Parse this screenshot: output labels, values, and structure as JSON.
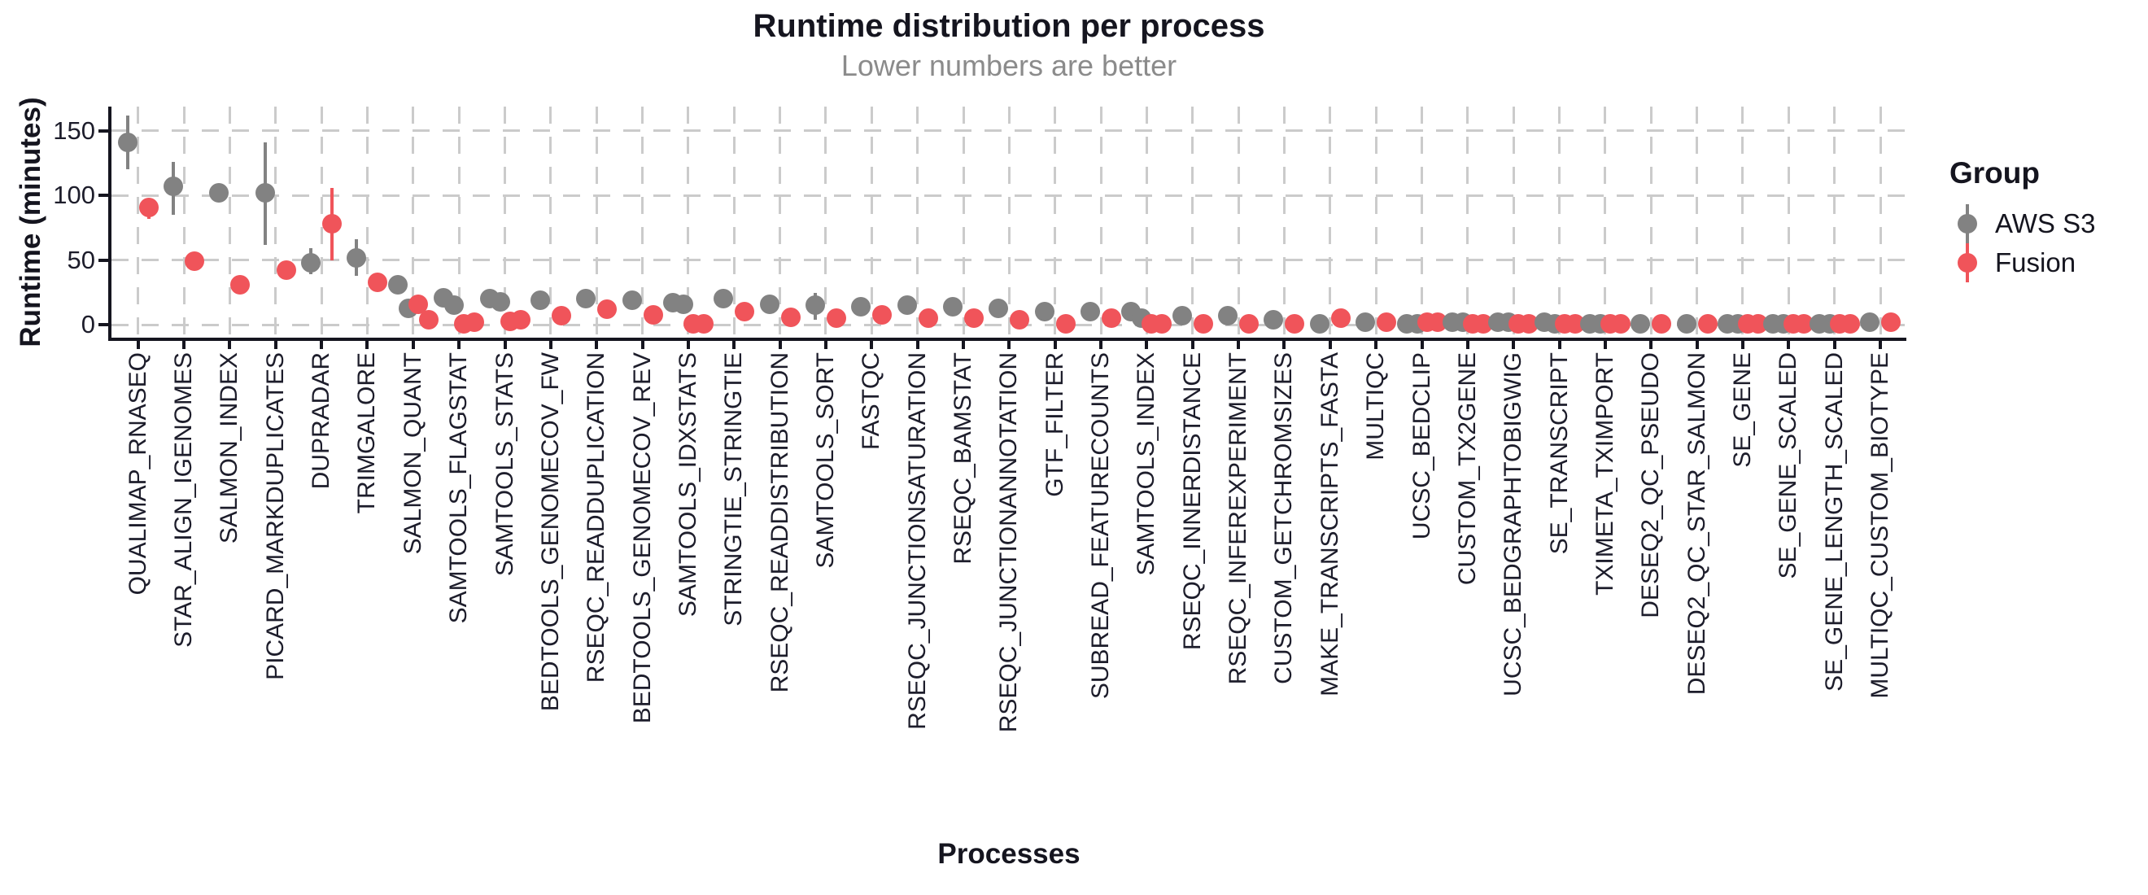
{
  "chart_data": {
    "type": "scatter",
    "title": "Runtime distribution per process",
    "subtitle": "Lower numbers are better",
    "xlabel": "Processes",
    "ylabel": "Runtime (minutes)",
    "ylim": [
      0,
      165
    ],
    "y_ticks": [
      0,
      50,
      100,
      150
    ],
    "grid": "dashed",
    "legend": {
      "title": "Group",
      "position": "right",
      "entries": [
        {
          "label": "AWS S3",
          "color": "#828282"
        },
        {
          "label": "Fusion",
          "color": "#f0545a"
        }
      ]
    },
    "colors": {
      "aws_s3": "#828282",
      "fusion": "#f0545a",
      "grid": "#cbcbcb",
      "axis": "#15151f",
      "subtitle": "#8b8b8b"
    },
    "processes": [
      {
        "name": "QUALIMAP_RNASEQ",
        "aws_s3": {
          "values": [
            141
          ],
          "range": [
            120,
            162
          ]
        },
        "fusion": {
          "values": [
            91
          ],
          "range": [
            82,
            97
          ]
        }
      },
      {
        "name": "STAR_ALIGN_IGENOMES",
        "aws_s3": {
          "values": [
            107
          ],
          "range": [
            85,
            126
          ]
        },
        "fusion": {
          "values": [
            49
          ]
        }
      },
      {
        "name": "SALMON_INDEX",
        "aws_s3": {
          "values": [
            102
          ]
        },
        "fusion": {
          "values": [
            31
          ]
        }
      },
      {
        "name": "PICARD_MARKDUPLICATES",
        "aws_s3": {
          "values": [
            102
          ],
          "range": [
            62,
            141
          ]
        },
        "fusion": {
          "values": [
            42
          ]
        }
      },
      {
        "name": "DUPRADAR",
        "aws_s3": {
          "values": [
            48
          ],
          "range": [
            39,
            59
          ]
        },
        "fusion": {
          "values": [
            78
          ],
          "range": [
            50,
            106
          ]
        }
      },
      {
        "name": "TRIMGALORE",
        "aws_s3": {
          "values": [
            52
          ],
          "range": [
            38,
            66
          ]
        },
        "fusion": {
          "values": [
            33
          ]
        }
      },
      {
        "name": "SALMON_QUANT",
        "aws_s3": {
          "values": [
            31,
            13
          ]
        },
        "fusion": {
          "values": [
            16,
            4
          ]
        }
      },
      {
        "name": "SAMTOOLS_FLAGSTAT",
        "aws_s3": {
          "values": [
            21,
            15
          ]
        },
        "fusion": {
          "values": [
            1,
            2
          ]
        }
      },
      {
        "name": "SAMTOOLS_STATS",
        "aws_s3": {
          "values": [
            20,
            18
          ]
        },
        "fusion": {
          "values": [
            3,
            4
          ]
        }
      },
      {
        "name": "BEDTOOLS_GENOMECOV_FW",
        "aws_s3": {
          "values": [
            19
          ]
        },
        "fusion": {
          "values": [
            7
          ]
        }
      },
      {
        "name": "RSEQC_READDUPLICATION",
        "aws_s3": {
          "values": [
            20
          ]
        },
        "fusion": {
          "values": [
            12
          ]
        }
      },
      {
        "name": "BEDTOOLS_GENOMECOV_REV",
        "aws_s3": {
          "values": [
            19
          ]
        },
        "fusion": {
          "values": [
            8
          ]
        }
      },
      {
        "name": "SAMTOOLS_IDXSTATS",
        "aws_s3": {
          "values": [
            17,
            16
          ]
        },
        "fusion": {
          "values": [
            1,
            1
          ]
        }
      },
      {
        "name": "STRINGTIE_STRINGTIE",
        "aws_s3": {
          "values": [
            20
          ]
        },
        "fusion": {
          "values": [
            10
          ]
        }
      },
      {
        "name": "RSEQC_READDISTRIBUTION",
        "aws_s3": {
          "values": [
            16
          ]
        },
        "fusion": {
          "values": [
            6
          ]
        }
      },
      {
        "name": "SAMTOOLS_SORT",
        "aws_s3": {
          "values": [
            15
          ],
          "range": [
            4,
            25
          ]
        },
        "fusion": {
          "values": [
            5
          ]
        }
      },
      {
        "name": "FASTQC",
        "aws_s3": {
          "values": [
            14
          ]
        },
        "fusion": {
          "values": [
            8
          ]
        }
      },
      {
        "name": "RSEQC_JUNCTIONSATURATION",
        "aws_s3": {
          "values": [
            15
          ]
        },
        "fusion": {
          "values": [
            5
          ]
        }
      },
      {
        "name": "RSEQC_BAMSTAT",
        "aws_s3": {
          "values": [
            14
          ]
        },
        "fusion": {
          "values": [
            5
          ]
        }
      },
      {
        "name": "RSEQC_JUNCTIONANNOTATION",
        "aws_s3": {
          "values": [
            13
          ]
        },
        "fusion": {
          "values": [
            4
          ]
        }
      },
      {
        "name": "GTF_FILTER",
        "aws_s3": {
          "values": [
            10
          ]
        },
        "fusion": {
          "values": [
            1
          ]
        }
      },
      {
        "name": "SUBREAD_FEATURECOUNTS",
        "aws_s3": {
          "values": [
            10
          ]
        },
        "fusion": {
          "values": [
            5
          ]
        }
      },
      {
        "name": "SAMTOOLS_INDEX",
        "aws_s3": {
          "values": [
            10,
            5
          ]
        },
        "fusion": {
          "values": [
            1,
            1
          ]
        }
      },
      {
        "name": "RSEQC_INNERDISTANCE",
        "aws_s3": {
          "values": [
            7
          ]
        },
        "fusion": {
          "values": [
            1
          ]
        }
      },
      {
        "name": "RSEQC_INFEREXPERIMENT",
        "aws_s3": {
          "values": [
            7
          ]
        },
        "fusion": {
          "values": [
            1
          ]
        }
      },
      {
        "name": "CUSTOM_GETCHROMSIZES",
        "aws_s3": {
          "values": [
            4
          ]
        },
        "fusion": {
          "values": [
            1
          ]
        }
      },
      {
        "name": "MAKE_TRANSCRIPTS_FASTA",
        "aws_s3": {
          "values": [
            1
          ]
        },
        "fusion": {
          "values": [
            5
          ]
        }
      },
      {
        "name": "MULTIQC",
        "aws_s3": {
          "values": [
            2
          ]
        },
        "fusion": {
          "values": [
            2
          ]
        }
      },
      {
        "name": "UCSC_BEDCLIP",
        "aws_s3": {
          "values": [
            1,
            1
          ]
        },
        "fusion": {
          "values": [
            2,
            2
          ]
        }
      },
      {
        "name": "CUSTOM_TX2GENE",
        "aws_s3": {
          "values": [
            2,
            2
          ]
        },
        "fusion": {
          "values": [
            1,
            1
          ]
        }
      },
      {
        "name": "UCSC_BEDGRAPHTOBIGWIG",
        "aws_s3": {
          "values": [
            2,
            2
          ]
        },
        "fusion": {
          "values": [
            1,
            1
          ]
        }
      },
      {
        "name": "SE_TRANSCRIPT",
        "aws_s3": {
          "values": [
            2,
            1
          ]
        },
        "fusion": {
          "values": [
            1,
            1
          ]
        }
      },
      {
        "name": "TXIMETA_TXIMPORT",
        "aws_s3": {
          "values": [
            1,
            1
          ]
        },
        "fusion": {
          "values": [
            1,
            1
          ]
        }
      },
      {
        "name": "DESEQ2_QC_PSEUDO",
        "aws_s3": {
          "values": [
            1
          ]
        },
        "fusion": {
          "values": [
            1
          ]
        }
      },
      {
        "name": "DESEQ2_QC_STAR_SALMON",
        "aws_s3": {
          "values": [
            1
          ]
        },
        "fusion": {
          "values": [
            1
          ]
        }
      },
      {
        "name": "SE_GENE",
        "aws_s3": {
          "values": [
            1,
            1
          ]
        },
        "fusion": {
          "values": [
            1,
            1
          ]
        }
      },
      {
        "name": "SE_GENE_SCALED",
        "aws_s3": {
          "values": [
            1,
            1
          ]
        },
        "fusion": {
          "values": [
            1,
            1
          ]
        }
      },
      {
        "name": "SE_GENE_LENGTH_SCALED",
        "aws_s3": {
          "values": [
            1,
            1
          ]
        },
        "fusion": {
          "values": [
            1,
            1
          ]
        }
      },
      {
        "name": "MULTIQC_CUSTOM_BIOTYPE",
        "aws_s3": {
          "values": [
            2
          ]
        },
        "fusion": {
          "values": [
            2
          ]
        }
      }
    ]
  }
}
